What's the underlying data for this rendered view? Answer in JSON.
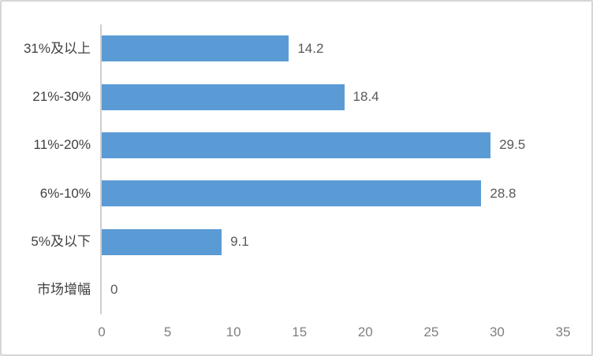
{
  "chart_data": {
    "type": "bar",
    "orientation": "horizontal",
    "title": "",
    "xlabel": "",
    "ylabel": "",
    "categories": [
      "31%及以上",
      "21%-30%",
      "11%-20%",
      "6%-10%",
      "5%及以下",
      "市场增幅"
    ],
    "values": [
      14.2,
      18.4,
      29.5,
      28.8,
      9.1,
      0
    ],
    "data_labels": [
      "14.2",
      "18.4",
      "29.5",
      "28.8",
      "9.1",
      "0"
    ],
    "x_ticks": [
      "0",
      "5",
      "10",
      "15",
      "20",
      "25",
      "30",
      "35"
    ],
    "x_tick_values": [
      0,
      5,
      10,
      15,
      20,
      25,
      30,
      35
    ],
    "xlim": [
      0,
      35
    ],
    "grid": "off",
    "legend": "none",
    "data_labels_shown": true,
    "colors": {
      "bar": "#5b9bd5",
      "category_label": "#404040",
      "data_label": "#595959",
      "tick_label": "#7f7f7f",
      "axis_line": "#d0cece",
      "frame_border": "#d6d6d6",
      "background": "#ffffff"
    }
  }
}
